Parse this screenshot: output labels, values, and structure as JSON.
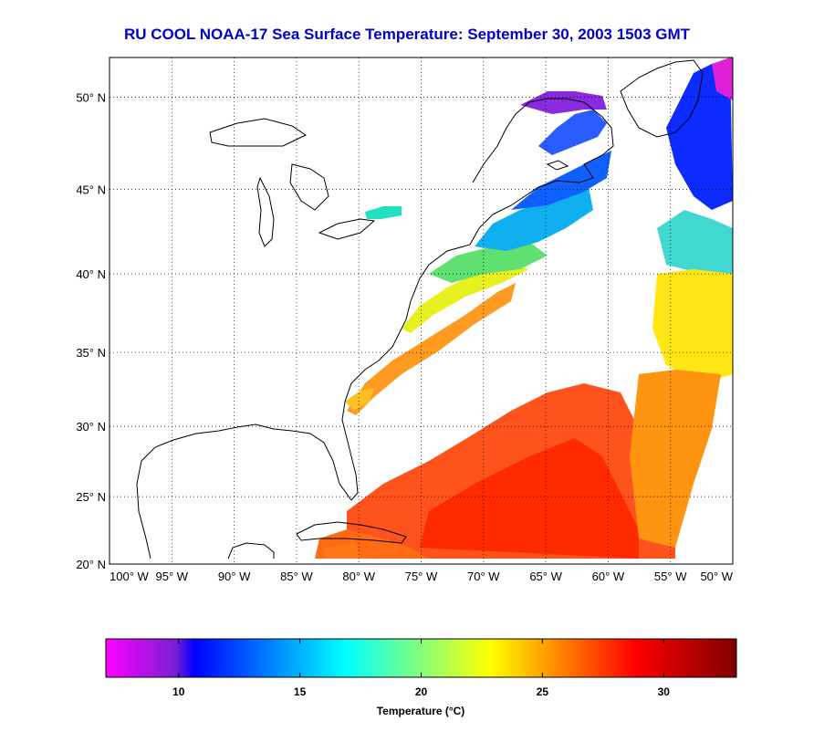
{
  "title": "RU COOL  NOAA-17  Sea Surface Temperature:  September 30, 2003 1503 GMT",
  "map": {
    "lon_range": [
      -100,
      -50
    ],
    "lat_range": [
      20,
      52
    ],
    "grid": "dotted",
    "lat_ticks": [
      {
        "value": 50,
        "label": "50° N"
      },
      {
        "value": 45,
        "label": "45° N"
      },
      {
        "value": 40,
        "label": "40° N"
      },
      {
        "value": 35,
        "label": "35° N"
      },
      {
        "value": 30,
        "label": "30° N"
      },
      {
        "value": 25,
        "label": "25° N"
      },
      {
        "value": 20,
        "label": "20° N"
      }
    ],
    "lon_ticks": [
      {
        "value": -100,
        "label": "100° W"
      },
      {
        "value": -95,
        "label": "95° W"
      },
      {
        "value": -90,
        "label": "90° W"
      },
      {
        "value": -85,
        "label": "85° W"
      },
      {
        "value": -80,
        "label": "80° W"
      },
      {
        "value": -75,
        "label": "75° W"
      },
      {
        "value": -70,
        "label": "70° W"
      },
      {
        "value": -65,
        "label": "65° W"
      },
      {
        "value": -60,
        "label": "60° W"
      },
      {
        "value": -55,
        "label": "55° W"
      },
      {
        "value": -50,
        "label": "50° W"
      }
    ]
  },
  "colorbar": {
    "label": "Temperature (°C)",
    "range": [
      7,
      33
    ],
    "ticks": [
      {
        "value": 10,
        "label": "10"
      },
      {
        "value": 15,
        "label": "15"
      },
      {
        "value": 20,
        "label": "20"
      },
      {
        "value": 25,
        "label": "25"
      },
      {
        "value": 30,
        "label": "30"
      }
    ],
    "colors": [
      "#ff00ff",
      "#0000ff",
      "#00ffff",
      "#ffff00",
      "#ff0000",
      "#800000"
    ]
  },
  "colors": {
    "title": "#0000cc"
  }
}
